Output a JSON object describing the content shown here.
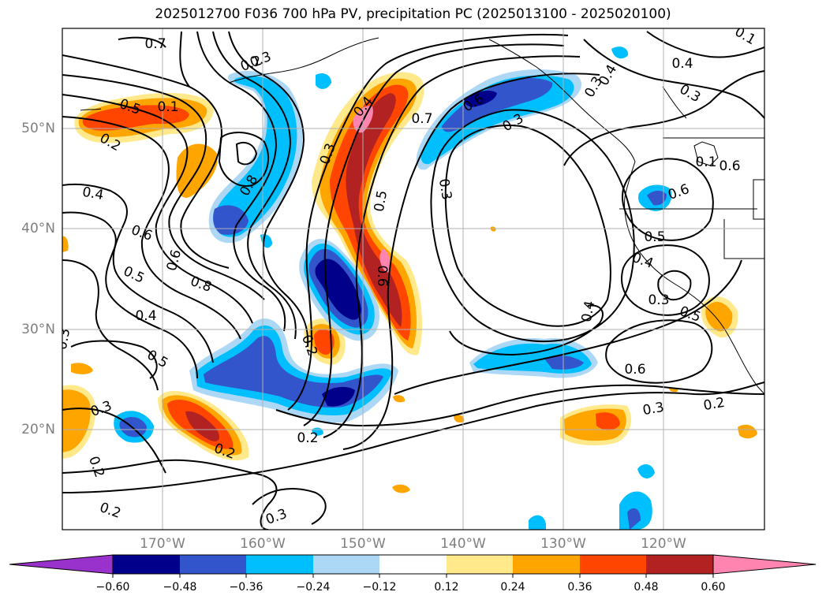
{
  "title": "2025012700 F036 700 hPa PV, precipitation PC (2025013100 - 2025020100)",
  "lat_labels": [
    "50°N",
    "40°N",
    "30°N",
    "20°N"
  ],
  "lon_labels": [
    "170°W",
    "160°W",
    "150°W",
    "140°W",
    "130°W",
    "120°W"
  ],
  "colorbar": {
    "ticks": [
      "−0.60",
      "−0.48",
      "−0.36",
      "−0.24",
      "−0.12",
      "0.12",
      "0.24",
      "0.36",
      "0.48",
      "0.60"
    ],
    "colors": {
      "below": "#9932cc",
      "m060": "#00008b",
      "m048": "#3355cc",
      "m036": "#00bfff",
      "m024": "#add8f5",
      "m012": "#ffffff",
      "p012": "#ffe98a",
      "p024": "#ffa500",
      "p036": "#ff4500",
      "p048": "#b22222",
      "above": "#ff85b0"
    }
  },
  "contour_labels": [
    "0.7",
    "0.2",
    "0.5",
    "0.1",
    "0.2",
    "0.3",
    "0.4",
    "0.6",
    "0.5",
    "0.6",
    "0.8",
    "0.8",
    "0.3",
    "0.4",
    "0.5",
    "0.6",
    "0.7",
    "0.6",
    "0.3",
    "0.3",
    "0.3",
    "0.4",
    "0.4",
    "0.3",
    "0.1",
    "0.6",
    "0.5",
    "0.4",
    "0.3",
    "0.5",
    "0.4",
    "0.6",
    "0.3",
    "0.2",
    "0.2",
    "0.2",
    "0.3",
    "0.2",
    "0.2",
    "0.3",
    "0.2",
    "0.4",
    "0.3",
    "0.5",
    "0.6",
    "0.1"
  ]
}
